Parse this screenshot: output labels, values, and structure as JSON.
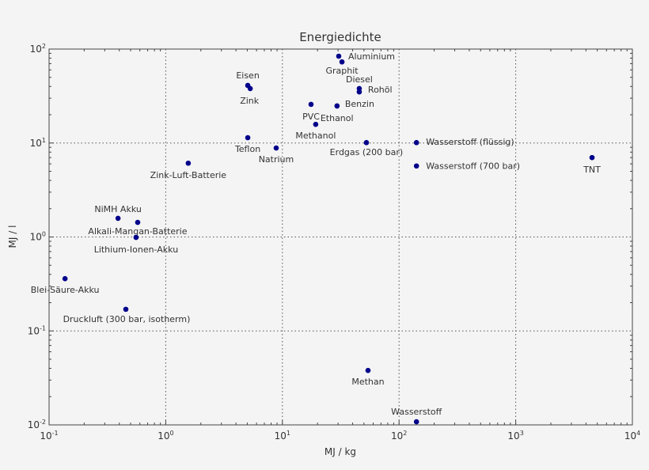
{
  "chart_data": {
    "type": "scatter",
    "title": "Energiedichte",
    "xlabel": "MJ / kg",
    "ylabel": "MJ / l",
    "xscale": "log",
    "yscale": "log",
    "xlim": [
      0.1,
      10000
    ],
    "ylim": [
      0.01,
      100
    ],
    "grid": true,
    "marker_color": "#00008b",
    "x_ticks": [
      {
        "base": "10",
        "exp": "-1"
      },
      {
        "base": "10",
        "exp": "0"
      },
      {
        "base": "10",
        "exp": "1"
      },
      {
        "base": "10",
        "exp": "2"
      },
      {
        "base": "10",
        "exp": "3"
      },
      {
        "base": "10",
        "exp": "4"
      }
    ],
    "y_ticks": [
      {
        "base": "10",
        "exp": "-2"
      },
      {
        "base": "10",
        "exp": "-1"
      },
      {
        "base": "10",
        "exp": "0"
      },
      {
        "base": "10",
        "exp": "1"
      },
      {
        "base": "10",
        "exp": "2"
      }
    ],
    "points": [
      {
        "label": "Aluminium",
        "x": 30.4,
        "y": 84
      },
      {
        "label": "Graphit",
        "x": 32.4,
        "y": 73
      },
      {
        "label": "Diesel",
        "x": 45.6,
        "y": 38
      },
      {
        "label": "Rohöl",
        "x": 45.6,
        "y": 35
      },
      {
        "label": "Eisen",
        "x": 5.05,
        "y": 41
      },
      {
        "label": "Zink",
        "x": 5.3,
        "y": 38
      },
      {
        "label": "Benzin",
        "x": 29.4,
        "y": 24.8
      },
      {
        "label": "PVC",
        "x": 17.6,
        "y": 25.8
      },
      {
        "label": "Ethanol",
        "x": 29.4,
        "y": 24.8
      },
      {
        "label": "Methanol",
        "x": 19.3,
        "y": 15.8
      },
      {
        "label": "Teflon",
        "x": 5.05,
        "y": 11.4
      },
      {
        "label": "Natrium",
        "x": 8.85,
        "y": 8.85
      },
      {
        "label": "Erdgas (200 bar)",
        "x": 52.5,
        "y": 10.1
      },
      {
        "label": "Wasserstoff (flüssig)",
        "x": 141,
        "y": 10.1
      },
      {
        "label": "Wasserstoff (700 bar)",
        "x": 141,
        "y": 5.7
      },
      {
        "label": "TNT",
        "x": 4510,
        "y": 7.0
      },
      {
        "label": "Zink-Luft-Batterie",
        "x": 1.56,
        "y": 6.1
      },
      {
        "label": "NiMH Akku",
        "x": 0.39,
        "y": 1.58
      },
      {
        "label": "Alkali-Mangan-Batterie",
        "x": 0.575,
        "y": 1.43
      },
      {
        "label": "Lithium-Ionen-Akku",
        "x": 0.557,
        "y": 0.99
      },
      {
        "label": "Blei-Säure-Akku",
        "x": 0.137,
        "y": 0.36
      },
      {
        "label": "Druckluft (300 bar, isotherm)",
        "x": 0.455,
        "y": 0.17
      },
      {
        "label": "Methan",
        "x": 54.2,
        "y": 0.038
      },
      {
        "label": "Wasserstoff",
        "x": 141,
        "y": 0.0108
      }
    ]
  }
}
